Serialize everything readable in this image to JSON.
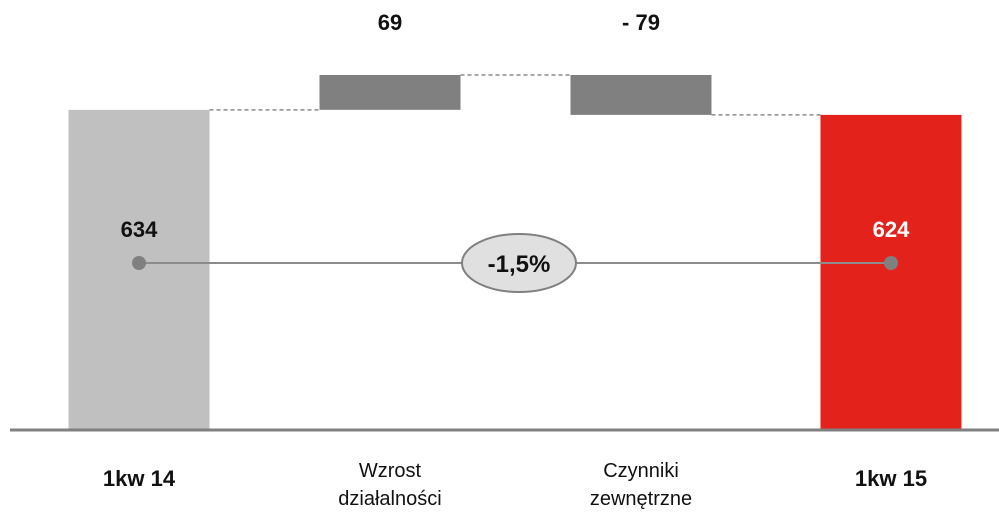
{
  "chart_data": {
    "type": "waterfall",
    "title": "",
    "xlabel": "",
    "ylabel": "",
    "ylim": [
      0,
      750
    ],
    "grid": false,
    "categories": [
      {
        "lines": [
          "1kw 14"
        ],
        "kind": "total",
        "value": 634,
        "label": "634",
        "color": "#c0c0c0",
        "label_color": "#111111"
      },
      {
        "lines": [
          "Wzrost",
          "działalności"
        ],
        "kind": "delta",
        "value": 69,
        "label": "69",
        "color": "#808080",
        "label_color": "#111111"
      },
      {
        "lines": [
          "Czynniki",
          "zewnętrzne"
        ],
        "kind": "delta",
        "value": -79,
        "label": "-  79",
        "color": "#808080",
        "label_color": "#111111"
      },
      {
        "lines": [
          "1kw 15"
        ],
        "kind": "total",
        "value": 624,
        "label": "624",
        "color": "#e3221c",
        "label_color": "#ffffff"
      }
    ],
    "change_annotation": {
      "text": "-1,5%"
    }
  }
}
